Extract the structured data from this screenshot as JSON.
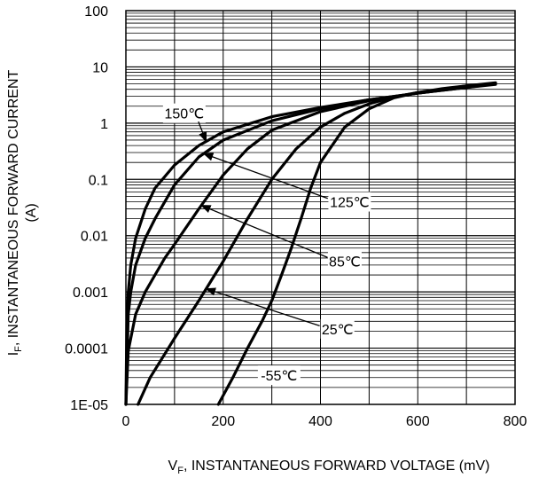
{
  "chart_data": {
    "type": "line",
    "title": "",
    "xlabel": {
      "main": "V",
      "sub": "F",
      "rest": ", INSTANTANEOUS FORWARD VOLTAGE (mV)"
    },
    "ylabel": {
      "main": "I",
      "sub": "F",
      "rest": ", INSTANTANEOUS FORWARD CURRENT",
      "line2": "(A)"
    },
    "xlim": [
      0,
      800
    ],
    "ylim": [
      1e-05,
      100
    ],
    "yscale": "log",
    "grid": "on",
    "x_ticks": [
      "0",
      "200",
      "400",
      "600",
      "800"
    ],
    "y_ticks": [
      "1E-05",
      "0.0001",
      "0.001",
      "0.01",
      "0.1",
      "1",
      "10",
      "100"
    ],
    "series": [
      {
        "name": "150℃",
        "x": [
          0,
          2,
          5,
          10,
          20,
          40,
          60,
          100,
          150,
          200,
          300,
          400,
          500,
          600,
          700,
          760
        ],
        "y": [
          1e-05,
          0.0003,
          0.001,
          0.003,
          0.009,
          0.03,
          0.07,
          0.18,
          0.4,
          0.7,
          1.3,
          1.9,
          2.6,
          3.4,
          4.3,
          4.9
        ]
      },
      {
        "name": "125℃",
        "x": [
          0,
          5,
          10,
          20,
          40,
          60,
          100,
          150,
          200,
          300,
          400,
          500,
          600,
          700,
          760
        ],
        "y": [
          1e-05,
          0.0004,
          0.001,
          0.003,
          0.009,
          0.02,
          0.08,
          0.25,
          0.5,
          1.1,
          1.8,
          2.6,
          3.4,
          4.3,
          5
        ]
      },
      {
        "name": "85℃",
        "x": [
          0,
          5,
          20,
          40,
          60,
          80,
          100,
          150,
          200,
          250,
          300,
          400,
          500,
          600,
          700,
          760
        ],
        "y": [
          1e-05,
          9e-05,
          0.0004,
          0.001,
          0.002,
          0.004,
          0.007,
          0.03,
          0.12,
          0.35,
          0.75,
          1.6,
          2.5,
          3.4,
          4.4,
          5.1
        ]
      },
      {
        "name": "25℃",
        "x": [
          25,
          50,
          100,
          150,
          200,
          250,
          300,
          350,
          400,
          450,
          500,
          550,
          600,
          650,
          700,
          760
        ],
        "y": [
          1e-05,
          3e-05,
          0.00015,
          0.0007,
          0.0035,
          0.02,
          0.1,
          0.35,
          0.85,
          1.5,
          2.2,
          2.9,
          3.5,
          4,
          4.6,
          5.1
        ]
      },
      {
        "name": "-55℃",
        "x": [
          190,
          220,
          250,
          280,
          300,
          320,
          340,
          360,
          380,
          400,
          450,
          500,
          550,
          600,
          650,
          700,
          760
        ],
        "y": [
          1e-05,
          3e-05,
          0.0001,
          0.0003,
          0.0007,
          0.002,
          0.006,
          0.02,
          0.07,
          0.2,
          0.85,
          1.8,
          2.8,
          3.5,
          4.1,
          4.6,
          5.2
        ]
      }
    ],
    "annotations": [
      {
        "label": "150℃",
        "series": "150℃",
        "at_x": 165,
        "text_x": 120,
        "text_y": 1.5
      },
      {
        "label": "125℃",
        "series": "125℃",
        "at_x": 160,
        "text_x": 460,
        "text_y": 0.04
      },
      {
        "label": "85℃",
        "series": "85℃",
        "at_x": 155,
        "text_x": 450,
        "text_y": 0.0035
      },
      {
        "label": "25℃",
        "series": "25℃",
        "at_x": 165,
        "text_x": 435,
        "text_y": 0.00022
      },
      {
        "label": "-55℃",
        "series": "-55℃",
        "at_x": null,
        "text_x": 315,
        "text_y": 3.3e-05
      }
    ]
  }
}
